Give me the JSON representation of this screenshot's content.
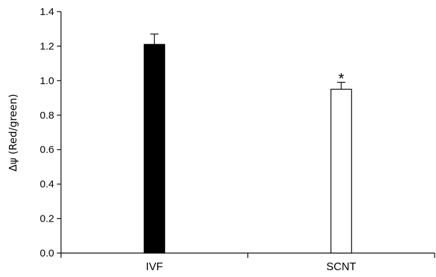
{
  "chart_data": {
    "type": "bar",
    "categories": [
      "IVF",
      "SCNT"
    ],
    "series": [
      {
        "values": [
          1.21,
          0.95
        ],
        "errors": [
          0.06,
          0.04
        ],
        "colors": [
          "#000000",
          "#ffffff"
        ]
      }
    ],
    "annotations": [
      "",
      "*"
    ],
    "title": "",
    "xlabel": "",
    "ylabel": "Δψ (Red/green)",
    "ylim": [
      0,
      1.4
    ],
    "yticks": [
      "0.0",
      "0.2",
      "0.4",
      "0.6",
      "0.8",
      "1.0",
      "1.2",
      "1.4"
    ],
    "grid": false,
    "legend": "none"
  }
}
